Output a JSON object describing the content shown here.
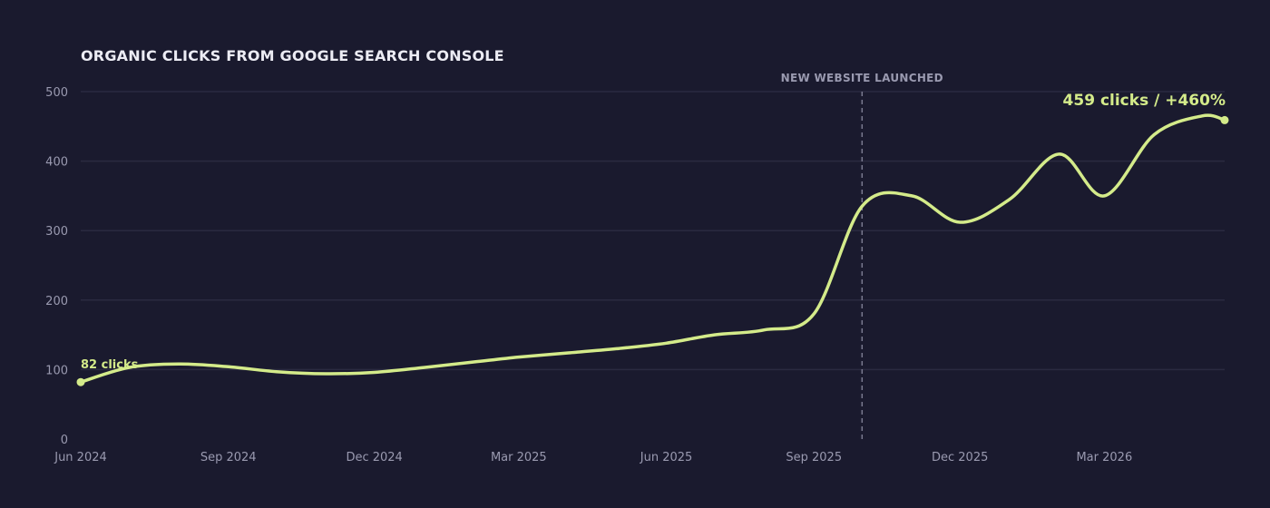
{
  "chart_data": {
    "type": "line",
    "title": "ORGANIC CLICKS FROM GOOGLE SEARCH CONSOLE",
    "xlabel": "",
    "ylabel": "",
    "x_ticks": [
      "Jun 2024",
      "Sep 2024",
      "Dec 2024",
      "Mar 2025",
      "Jun 2025",
      "Sep 2025",
      "Dec 2025",
      "Mar 2026"
    ],
    "y_ticks": [
      "0",
      "100",
      "200",
      "300",
      "400",
      "500"
    ],
    "ylim": [
      0,
      500
    ],
    "xlim": [
      "2024-06-01",
      "2026-05-15"
    ],
    "grid": true,
    "series": [
      {
        "x": [
          "2024-06-01",
          "2024-07-01",
          "2024-08-01",
          "2024-09-01",
          "2024-10-01",
          "2024-11-01",
          "2024-12-01",
          "2025-01-01",
          "2025-02-01",
          "2025-03-01",
          "2025-04-01",
          "2025-05-01",
          "2025-06-01",
          "2025-07-01",
          "2025-08-01",
          "2025-09-01",
          "2025-10-01",
          "2025-11-01",
          "2025-12-01",
          "2026-01-01",
          "2026-02-01",
          "2026-03-01",
          "2026-04-01",
          "2026-05-01",
          "2026-05-15"
        ],
        "values": [
          82,
          103,
          108,
          104,
          97,
          94,
          96,
          103,
          111,
          118,
          124,
          130,
          138,
          150,
          157,
          180,
          335,
          350,
          312,
          345,
          410,
          350,
          438,
          465,
          459
        ]
      }
    ],
    "event_marker": {
      "x": "2025-10-01",
      "label": "NEW WEBSITE LAUNCHED"
    },
    "annotations": {
      "start": "82 clicks",
      "end": "459 clicks / +460%"
    },
    "colors": {
      "background": "#1a1a2e",
      "line": "#d4eb8a",
      "grid": "#2a2a40",
      "tick_text": "#9a9ab0",
      "title": "#ececf4",
      "event_line": "#7a7a90"
    }
  }
}
